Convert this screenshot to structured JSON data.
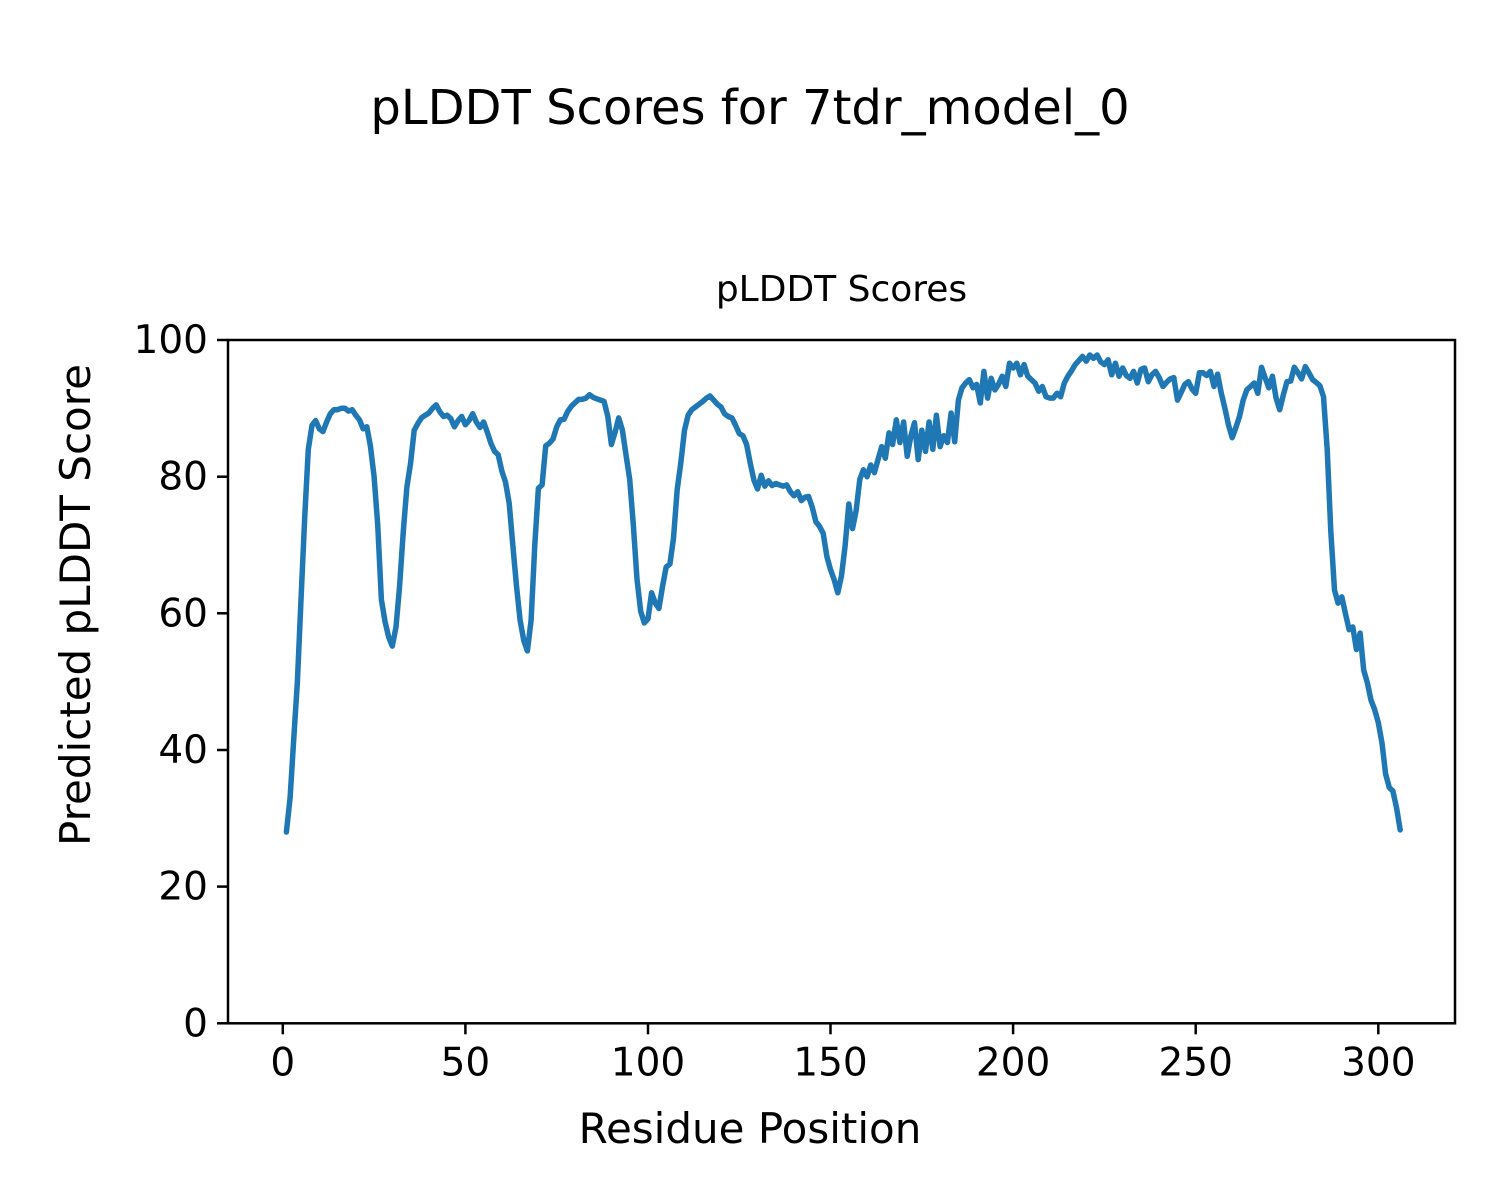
{
  "figure": {
    "title": "pLDDT Scores for 7tdr_model_0"
  },
  "chart_data": {
    "type": "line",
    "title": "pLDDT Scores",
    "xlabel": "Residue Position",
    "ylabel": "Predicted pLDDT Score",
    "xlim": [
      -15,
      321
    ],
    "ylim": [
      0,
      100
    ],
    "xticks": [
      0,
      50,
      100,
      150,
      200,
      250,
      300
    ],
    "yticks": [
      0,
      20,
      40,
      60,
      80,
      100
    ],
    "grid": false,
    "legend_position": "none",
    "line_color": "#1f77b4",
    "line_width": 5.5,
    "series": [
      {
        "name": "pLDDT",
        "points": [
          [
            1,
            28.0
          ],
          [
            2,
            33.0
          ],
          [
            3,
            41.5
          ],
          [
            4,
            50.0
          ],
          [
            5,
            62.0
          ],
          [
            6,
            74.0
          ],
          [
            7,
            84.0
          ],
          [
            8,
            87.5
          ],
          [
            9,
            88.2
          ],
          [
            10,
            87.0
          ],
          [
            11,
            86.6
          ],
          [
            12,
            88.0
          ],
          [
            13,
            89.2
          ],
          [
            14,
            89.8
          ],
          [
            15,
            89.8
          ],
          [
            16,
            90.0
          ],
          [
            17,
            90.0
          ],
          [
            18,
            89.6
          ],
          [
            19,
            89.8
          ],
          [
            20,
            89.0
          ],
          [
            21,
            88.3
          ],
          [
            22,
            87.0
          ],
          [
            23,
            87.3
          ],
          [
            24,
            84.5
          ],
          [
            25,
            80.0
          ],
          [
            26,
            73.0
          ],
          [
            27,
            62.0
          ],
          [
            28,
            58.8
          ],
          [
            29,
            56.5
          ],
          [
            30,
            55.2
          ],
          [
            31,
            58.0
          ],
          [
            32,
            64.0
          ],
          [
            33,
            72.0
          ],
          [
            34,
            78.5
          ],
          [
            35,
            82.0
          ],
          [
            36,
            86.8
          ],
          [
            37,
            87.8
          ],
          [
            38,
            88.6
          ],
          [
            39,
            89.0
          ],
          [
            40,
            89.3
          ],
          [
            41,
            90.0
          ],
          [
            42,
            90.5
          ],
          [
            43,
            89.5
          ],
          [
            44,
            88.8
          ],
          [
            45,
            89.0
          ],
          [
            46,
            88.5
          ],
          [
            47,
            87.3
          ],
          [
            48,
            88.2
          ],
          [
            49,
            88.8
          ],
          [
            50,
            87.6
          ],
          [
            51,
            88.2
          ],
          [
            52,
            89.2
          ],
          [
            53,
            88.0
          ],
          [
            54,
            87.2
          ],
          [
            55,
            88.0
          ],
          [
            56,
            86.5
          ],
          [
            57,
            84.9
          ],
          [
            58,
            83.7
          ],
          [
            59,
            83.2
          ],
          [
            60,
            80.8
          ],
          [
            61,
            79.2
          ],
          [
            62,
            76.1
          ],
          [
            63,
            70.0
          ],
          [
            64,
            64.0
          ],
          [
            65,
            59.0
          ],
          [
            66,
            56.0
          ],
          [
            67,
            54.5
          ],
          [
            68,
            59.0
          ],
          [
            69,
            70.0
          ],
          [
            70,
            78.3
          ],
          [
            71,
            78.8
          ],
          [
            72,
            84.5
          ],
          [
            73,
            84.9
          ],
          [
            74,
            85.5
          ],
          [
            75,
            87.3
          ],
          [
            76,
            88.3
          ],
          [
            77,
            88.4
          ],
          [
            78,
            89.5
          ],
          [
            79,
            90.3
          ],
          [
            80,
            90.8
          ],
          [
            81,
            91.3
          ],
          [
            82,
            91.3
          ],
          [
            83,
            91.5
          ],
          [
            84,
            92.0
          ],
          [
            85,
            91.6
          ],
          [
            86,
            91.4
          ],
          [
            87,
            91.2
          ],
          [
            88,
            91.0
          ],
          [
            89,
            88.8
          ],
          [
            90,
            84.7
          ],
          [
            91,
            86.5
          ],
          [
            92,
            88.6
          ],
          [
            93,
            86.8
          ],
          [
            94,
            83.2
          ],
          [
            95,
            79.6
          ],
          [
            96,
            73.0
          ],
          [
            97,
            65.0
          ],
          [
            98,
            60.3
          ],
          [
            99,
            58.6
          ],
          [
            100,
            59.2
          ],
          [
            101,
            63.0
          ],
          [
            102,
            61.5
          ],
          [
            103,
            60.7
          ],
          [
            104,
            64.0
          ],
          [
            105,
            66.8
          ],
          [
            106,
            67.2
          ],
          [
            107,
            71.0
          ],
          [
            108,
            78.1
          ],
          [
            109,
            82.0
          ],
          [
            110,
            86.8
          ],
          [
            111,
            89.0
          ],
          [
            112,
            89.8
          ],
          [
            113,
            90.2
          ],
          [
            114,
            90.6
          ],
          [
            115,
            91.0
          ],
          [
            116,
            91.5
          ],
          [
            117,
            91.8
          ],
          [
            118,
            91.2
          ],
          [
            119,
            90.6
          ],
          [
            120,
            90.2
          ],
          [
            121,
            89.2
          ],
          [
            122,
            88.8
          ],
          [
            123,
            88.6
          ],
          [
            124,
            87.5
          ],
          [
            125,
            86.3
          ],
          [
            126,
            86.0
          ],
          [
            127,
            84.7
          ],
          [
            128,
            82.0
          ],
          [
            129,
            79.5
          ],
          [
            130,
            78.2
          ],
          [
            131,
            80.2
          ],
          [
            132,
            78.6
          ],
          [
            133,
            79.4
          ],
          [
            134,
            78.7
          ],
          [
            135,
            79.0
          ],
          [
            136,
            78.8
          ],
          [
            137,
            78.6
          ],
          [
            138,
            78.8
          ],
          [
            139,
            77.8
          ],
          [
            140,
            77.2
          ],
          [
            141,
            77.8
          ],
          [
            142,
            76.5
          ],
          [
            143,
            77.0
          ],
          [
            144,
            77.1
          ],
          [
            145,
            75.5
          ],
          [
            146,
            73.4
          ],
          [
            147,
            72.7
          ],
          [
            148,
            71.7
          ],
          [
            149,
            68.3
          ],
          [
            150,
            66.4
          ],
          [
            151,
            64.9
          ],
          [
            152,
            63.0
          ],
          [
            153,
            65.5
          ],
          [
            154,
            70.0
          ],
          [
            155,
            76.0
          ],
          [
            156,
            72.4
          ],
          [
            157,
            75.0
          ],
          [
            158,
            79.6
          ],
          [
            159,
            81.0
          ],
          [
            160,
            80.0
          ],
          [
            161,
            81.7
          ],
          [
            162,
            80.6
          ],
          [
            163,
            82.5
          ],
          [
            164,
            84.4
          ],
          [
            165,
            82.7
          ],
          [
            166,
            86.4
          ],
          [
            167,
            84.7
          ],
          [
            168,
            88.3
          ],
          [
            169,
            85.0
          ],
          [
            170,
            88.0
          ],
          [
            171,
            83.0
          ],
          [
            172,
            86.0
          ],
          [
            173,
            87.9
          ],
          [
            174,
            82.5
          ],
          [
            175,
            86.8
          ],
          [
            176,
            83.7
          ],
          [
            177,
            88.0
          ],
          [
            178,
            84.0
          ],
          [
            179,
            89.0
          ],
          [
            180,
            84.4
          ],
          [
            181,
            86.0
          ],
          [
            182,
            85.0
          ],
          [
            183,
            89.3
          ],
          [
            184,
            85.1
          ],
          [
            185,
            91.2
          ],
          [
            186,
            93.0
          ],
          [
            187,
            93.7
          ],
          [
            188,
            94.2
          ],
          [
            189,
            93.0
          ],
          [
            190,
            93.5
          ],
          [
            191,
            90.8
          ],
          [
            192,
            95.4
          ],
          [
            193,
            91.5
          ],
          [
            194,
            94.4
          ],
          [
            195,
            92.7
          ],
          [
            196,
            93.5
          ],
          [
            197,
            94.7
          ],
          [
            198,
            93.2
          ],
          [
            199,
            96.6
          ],
          [
            200,
            95.9
          ],
          [
            201,
            96.6
          ],
          [
            202,
            94.9
          ],
          [
            203,
            96.4
          ],
          [
            204,
            94.7
          ],
          [
            205,
            94.2
          ],
          [
            206,
            93.7
          ],
          [
            207,
            92.5
          ],
          [
            208,
            93.2
          ],
          [
            209,
            91.7
          ],
          [
            210,
            91.5
          ],
          [
            211,
            91.5
          ],
          [
            212,
            92.2
          ],
          [
            213,
            91.7
          ],
          [
            214,
            93.7
          ],
          [
            215,
            94.7
          ],
          [
            216,
            95.5
          ],
          [
            217,
            96.4
          ],
          [
            218,
            97.0
          ],
          [
            219,
            97.6
          ],
          [
            220,
            96.9
          ],
          [
            221,
            97.8
          ],
          [
            222,
            97.3
          ],
          [
            223,
            97.8
          ],
          [
            224,
            96.8
          ],
          [
            225,
            96.4
          ],
          [
            226,
            97.1
          ],
          [
            227,
            94.9
          ],
          [
            228,
            96.6
          ],
          [
            229,
            94.7
          ],
          [
            230,
            95.9
          ],
          [
            231,
            94.8
          ],
          [
            232,
            94.4
          ],
          [
            233,
            95.4
          ],
          [
            234,
            93.7
          ],
          [
            235,
            95.7
          ],
          [
            236,
            95.9
          ],
          [
            237,
            93.9
          ],
          [
            238,
            94.9
          ],
          [
            239,
            95.4
          ],
          [
            240,
            94.5
          ],
          [
            241,
            93.2
          ],
          [
            242,
            93.8
          ],
          [
            243,
            94.3
          ],
          [
            244,
            94.5
          ],
          [
            245,
            91.2
          ],
          [
            246,
            92.3
          ],
          [
            247,
            93.5
          ],
          [
            248,
            93.9
          ],
          [
            249,
            92.8
          ],
          [
            250,
            92.2
          ],
          [
            251,
            95.2
          ],
          [
            252,
            95.2
          ],
          [
            253,
            94.8
          ],
          [
            254,
            95.4
          ],
          [
            255,
            93.2
          ],
          [
            256,
            95.0
          ],
          [
            257,
            92.2
          ],
          [
            258,
            90.0
          ],
          [
            259,
            87.5
          ],
          [
            260,
            85.7
          ],
          [
            261,
            87.2
          ],
          [
            262,
            88.8
          ],
          [
            263,
            91.2
          ],
          [
            264,
            92.7
          ],
          [
            265,
            93.2
          ],
          [
            266,
            93.7
          ],
          [
            267,
            92.2
          ],
          [
            268,
            96.0
          ],
          [
            269,
            94.5
          ],
          [
            270,
            93.0
          ],
          [
            271,
            94.7
          ],
          [
            272,
            91.5
          ],
          [
            273,
            89.8
          ],
          [
            274,
            92.0
          ],
          [
            275,
            93.9
          ],
          [
            276,
            94.0
          ],
          [
            277,
            96.0
          ],
          [
            278,
            95.2
          ],
          [
            279,
            94.3
          ],
          [
            280,
            96.1
          ],
          [
            281,
            95.2
          ],
          [
            282,
            94.2
          ],
          [
            283,
            93.8
          ],
          [
            284,
            93.3
          ],
          [
            285,
            91.7
          ],
          [
            286,
            84.0
          ],
          [
            287,
            72.0
          ],
          [
            288,
            63.4
          ],
          [
            289,
            61.5
          ],
          [
            290,
            62.4
          ],
          [
            291,
            60.0
          ],
          [
            292,
            57.6
          ],
          [
            293,
            58.0
          ],
          [
            294,
            54.7
          ],
          [
            295,
            57.1
          ],
          [
            296,
            51.7
          ],
          [
            297,
            49.8
          ],
          [
            298,
            47.3
          ],
          [
            299,
            45.9
          ],
          [
            300,
            44.0
          ],
          [
            301,
            41.0
          ],
          [
            302,
            36.5
          ],
          [
            303,
            34.5
          ],
          [
            304,
            34.0
          ],
          [
            305,
            31.5
          ],
          [
            306,
            28.3
          ]
        ]
      }
    ]
  }
}
